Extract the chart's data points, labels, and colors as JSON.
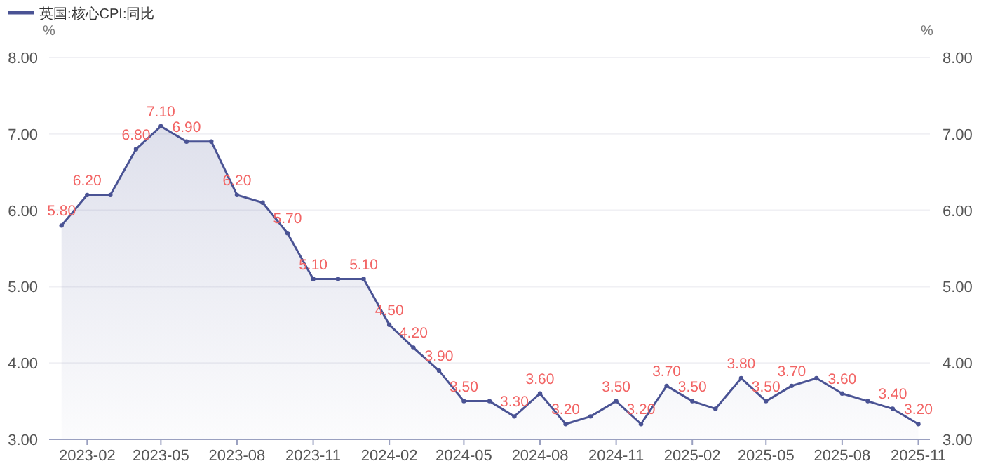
{
  "chart_data": {
    "type": "area",
    "legend": "top left",
    "grid": "y",
    "marker": "circle",
    "line_style": "solid",
    "x": [
      "2023-01",
      "2023-02",
      "2023-03",
      "2023-04",
      "2023-05",
      "2023-06",
      "2023-07",
      "2023-08",
      "2023-09",
      "2023-10",
      "2023-11",
      "2023-12",
      "2024-01",
      "2024-02",
      "2024-03",
      "2024-04",
      "2024-05",
      "2024-06",
      "2024-07",
      "2024-08",
      "2024-09",
      "2024-10",
      "2024-11",
      "2024-12",
      "2025-01",
      "2025-02",
      "2025-03",
      "2025-04",
      "2025-05",
      "2025-06",
      "2025-07",
      "2025-08",
      "2025-09",
      "2025-10",
      "2025-11"
    ],
    "series": [
      {
        "name": "英国:核心CPI:同比",
        "color": "#4a5394",
        "values": [
          5.8,
          6.2,
          6.2,
          6.8,
          7.1,
          6.9,
          6.9,
          6.2,
          6.1,
          5.7,
          5.1,
          5.1,
          5.1,
          4.5,
          4.2,
          3.9,
          3.5,
          3.5,
          3.3,
          3.6,
          3.2,
          3.3,
          3.5,
          3.2,
          3.7,
          3.5,
          3.4,
          3.8,
          3.5,
          3.7,
          3.8,
          3.6,
          3.5,
          3.4,
          3.2
        ],
        "value_labels": [
          "5.80",
          "6.20",
          null,
          "6.80",
          "7.10",
          "6.90",
          null,
          "6.20",
          null,
          "5.70",
          "5.10",
          null,
          "5.10",
          "4.50",
          "4.20",
          "3.90",
          "3.50",
          null,
          "3.30",
          "3.60",
          "3.20",
          null,
          "3.50",
          "3.20",
          "3.70",
          "3.50",
          null,
          "3.80",
          "3.50",
          "3.70",
          null,
          "3.60",
          null,
          "3.40",
          "3.20"
        ]
      }
    ],
    "ylabel": "%",
    "y2label": "%",
    "xlim": [
      "2022-12-17",
      "2025-11-15"
    ],
    "xticks": [
      {
        "value": "2023-02",
        "label": "2023-02"
      },
      {
        "value": "2023-05",
        "label": "2023-05"
      },
      {
        "value": "2023-08",
        "label": "2023-08"
      },
      {
        "value": "2023-11",
        "label": "2023-11"
      },
      {
        "value": "2024-02",
        "label": "2024-02"
      },
      {
        "value": "2024-05",
        "label": "2024-05"
      },
      {
        "value": "2024-08",
        "label": "2024-08"
      },
      {
        "value": "2024-11",
        "label": "2024-11"
      },
      {
        "value": "2025-02",
        "label": "2025-02"
      },
      {
        "value": "2025-05",
        "label": "2025-05"
      },
      {
        "value": "2025-08",
        "label": "2025-08"
      },
      {
        "value": "2025-11",
        "label": "2025-11"
      }
    ],
    "ylim": [
      3,
      8
    ],
    "yticks": [
      {
        "value": 3,
        "label": "3.00"
      },
      {
        "value": 4,
        "label": "4.00"
      },
      {
        "value": 5,
        "label": "5.00"
      },
      {
        "value": 6,
        "label": "6.00"
      },
      {
        "value": 7,
        "label": "7.00"
      },
      {
        "value": 8,
        "label": "8.00"
      }
    ],
    "y2lim": [
      3,
      8
    ],
    "y2ticks": [
      {
        "value": 3,
        "label": "3.00"
      },
      {
        "value": 4,
        "label": "4.00"
      },
      {
        "value": 5,
        "label": "5.00"
      },
      {
        "value": 6,
        "label": "6.00"
      },
      {
        "value": 7,
        "label": "7.00"
      },
      {
        "value": 8,
        "label": "8.00"
      }
    ]
  }
}
